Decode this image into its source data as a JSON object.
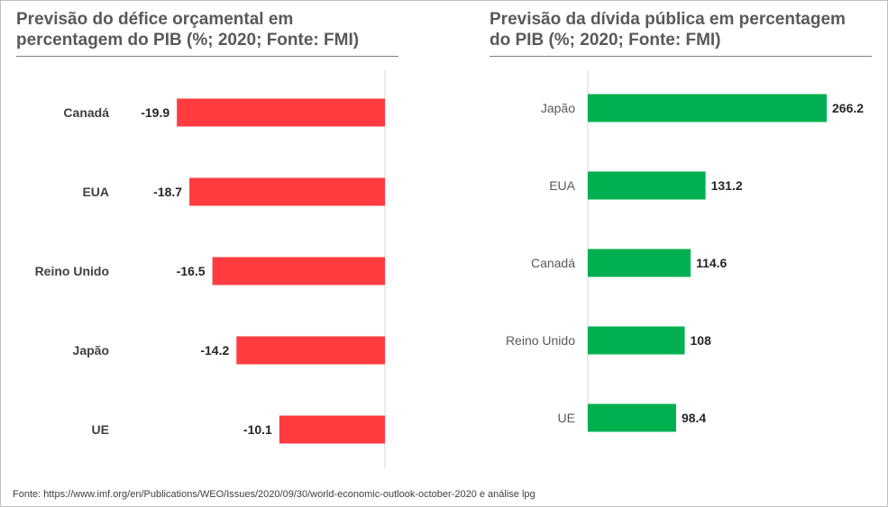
{
  "footer": "Fonte: https://www.imf.org/en/Publications/WEO/Issues/2020/09/30/world-economic-outlook-october-2020 e análise lpg",
  "chart_data": [
    {
      "type": "bar",
      "orientation": "horizontal",
      "title_lines": [
        "Previsão do défice orçamental em",
        "percentagem do PIB (%; 2020; Fonte: FMI)"
      ],
      "categories": [
        "Canadá",
        "EUA",
        "Reino Unido",
        "Japão",
        "UE"
      ],
      "values": [
        -19.9,
        -18.7,
        -16.5,
        -14.2,
        -10.1
      ],
      "data_labels": [
        "-19.9",
        "-18.7",
        "-16.5",
        "-14.2",
        "-10.1"
      ],
      "xlim": [
        -20,
        0
      ],
      "bar_color": "#FF3B3F",
      "category_label_bold": true,
      "grid": false
    },
    {
      "type": "bar",
      "orientation": "horizontal",
      "title_lines": [
        "Previsão da dívida pública em percentagem",
        "do PIB (%; 2020; Fonte: FMI)"
      ],
      "categories": [
        "Japão",
        "EUA",
        "Canadá",
        "Reino Unido",
        "UE"
      ],
      "values": [
        266.2,
        131.2,
        114.6,
        108,
        98.4
      ],
      "data_labels": [
        "266.2",
        "131.2",
        "114.6",
        "108",
        "98.4"
      ],
      "xlim": [
        0,
        266.2
      ],
      "bar_color": "#00B050",
      "category_label_bold": false,
      "grid": false
    }
  ]
}
